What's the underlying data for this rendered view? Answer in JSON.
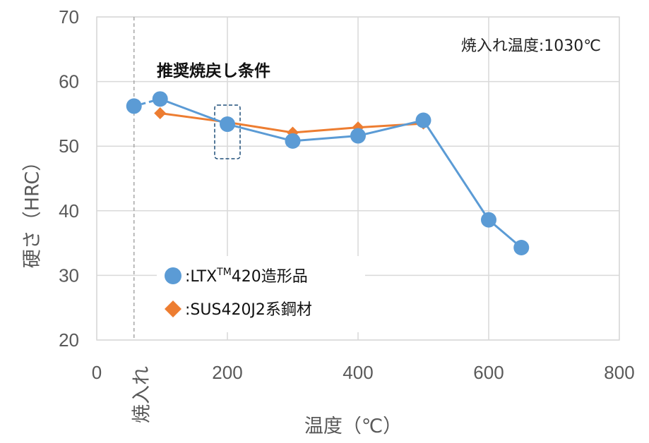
{
  "chart_data": {
    "type": "line",
    "xlabel": "温度（℃）",
    "ylabel": "硬さ（HRC）",
    "xlim": [
      0,
      800
    ],
    "ylim": [
      20,
      70
    ],
    "x_ticks": [
      0,
      200,
      400,
      600,
      800
    ],
    "y_ticks": [
      20,
      30,
      40,
      50,
      60,
      70
    ],
    "grid": true,
    "annotation_top_right": "焼入れ温度:1030℃",
    "annotation_condition": "推奨焼戻し条件",
    "quench_label": "焼入れ",
    "quench_x": 57,
    "highlight_x": 200,
    "highlight_y": 53.3,
    "legend_position": "bottom-left",
    "series": [
      {
        "name": ":LTX™420造形品",
        "legend_label": ":LTX",
        "legend_sup": "TM",
        "legend_suffix": "420造形品",
        "color": "#5B9BD5",
        "marker": "circle",
        "points": [
          [
            57,
            56.2
          ],
          [
            97,
            57.3
          ],
          [
            200,
            53.4
          ],
          [
            300,
            50.8
          ],
          [
            400,
            51.6
          ],
          [
            500,
            54.0
          ],
          [
            600,
            38.6
          ],
          [
            650,
            34.3
          ]
        ],
        "line_from_index": 1
      },
      {
        "name": ":SUS420J2系鋼材",
        "legend_label": ":SUS420J2系鋼材",
        "color": "#ED7D31",
        "marker": "diamond",
        "points": [
          [
            97,
            55.1
          ],
          [
            200,
            53.7
          ],
          [
            300,
            52.1
          ],
          [
            400,
            52.9
          ],
          [
            500,
            53.5
          ]
        ]
      }
    ]
  }
}
